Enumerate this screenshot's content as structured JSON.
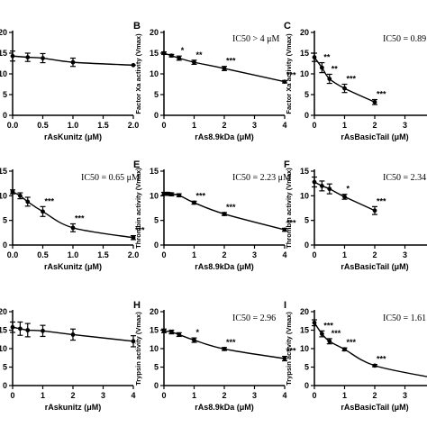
{
  "chart_data": [
    {
      "panel": "",
      "type": "line",
      "xlabel": "rAsKunitz (μM)",
      "ylabel": "",
      "ic50": "",
      "xlim": [
        0,
        2
      ],
      "ylim": [
        0,
        20
      ],
      "xticks": [
        "0.0",
        "0.5",
        "1.0",
        "1.5",
        "2.0"
      ],
      "yticks": [
        "0",
        "5",
        "10",
        "15",
        "20"
      ],
      "x": [
        0,
        0.25,
        0.5,
        1.0,
        2.0
      ],
      "values": [
        14.3,
        14.0,
        13.8,
        12.8,
        12.1
      ],
      "errors": [
        1.2,
        1.0,
        1.1,
        1.0,
        0
      ],
      "stars": [
        "",
        "",
        "",
        "",
        ""
      ]
    },
    {
      "panel": "B",
      "type": "line",
      "xlabel": "rAs8.9kDa (μM)",
      "ylabel": "Factor Xa activity (Vmax)",
      "ic50": "IC50 > 4 μM",
      "xlim": [
        0,
        4
      ],
      "ylim": [
        0,
        20
      ],
      "xticks": [
        "0",
        "1",
        "2",
        "3",
        "4"
      ],
      "yticks": [
        "0",
        "5",
        "10",
        "15",
        "20"
      ],
      "x": [
        0,
        0.25,
        0.5,
        1.0,
        2.0,
        4.0
      ],
      "values": [
        15.0,
        14.4,
        13.8,
        12.8,
        11.3,
        8.1
      ],
      "errors": [
        0.3,
        0.3,
        0.5,
        0.5,
        0.5,
        0.3
      ],
      "stars": [
        "",
        "",
        "*",
        "**",
        "***",
        "***"
      ]
    },
    {
      "panel": "C",
      "type": "line",
      "xlabel": "rAsBasicTail (μM)",
      "ylabel": "Factor Xa activity (Vmax)",
      "ic50": "IC50 = 0.89",
      "xlim": [
        0,
        4
      ],
      "ylim": [
        0,
        20
      ],
      "xticks": [
        "0",
        "1",
        "2",
        "3"
      ],
      "yticks": [
        "0",
        "5",
        "10",
        "15",
        "20"
      ],
      "x": [
        0,
        0.25,
        0.5,
        1.0,
        2.0
      ],
      "values": [
        14.0,
        11.5,
        8.8,
        6.5,
        3.2
      ],
      "errors": [
        1.0,
        1.2,
        1.1,
        1.0,
        0.6
      ],
      "stars": [
        "",
        "**",
        "**",
        "***",
        "***"
      ]
    },
    {
      "panel": "",
      "type": "line",
      "xlabel": "rAsKunitz (μM)",
      "ylabel": "",
      "ic50": "IC50 = 0.65 μM",
      "xlim": [
        0,
        2
      ],
      "ylim": [
        0,
        15
      ],
      "xticks": [
        "0.0",
        "0.5",
        "1.0",
        "1.5",
        "2.0"
      ],
      "yticks": [
        "0",
        "5",
        "10",
        "15"
      ],
      "x": [
        0,
        0.125,
        0.25,
        0.5,
        1.0,
        2.0
      ],
      "values": [
        10.8,
        10.0,
        8.8,
        6.8,
        3.5,
        1.5
      ],
      "errors": [
        0.4,
        0.6,
        0.9,
        1.0,
        0.8,
        0.4
      ],
      "stars": [
        "",
        "",
        "",
        "***",
        "***",
        "***"
      ]
    },
    {
      "panel": "E",
      "type": "line",
      "xlabel": "rAs8.9kDa (μM)",
      "ylabel": "Thrombin activity (Vmax)",
      "ic50": "IC50 = 2.23 μM",
      "xlim": [
        0,
        4
      ],
      "ylim": [
        0,
        15
      ],
      "xticks": [
        "0",
        "1",
        "2",
        "3",
        "4"
      ],
      "yticks": [
        "0",
        "5",
        "10",
        "15"
      ],
      "x": [
        0,
        0.125,
        0.25,
        0.5,
        1.0,
        2.0,
        4.0
      ],
      "values": [
        10.4,
        10.4,
        10.3,
        10.1,
        8.6,
        6.3,
        3.1
      ],
      "errors": [
        0.3,
        0.3,
        0.3,
        0.3,
        0.3,
        0.3,
        0.3
      ],
      "stars": [
        "",
        "",
        "",
        "",
        "***",
        "***",
        "***"
      ]
    },
    {
      "panel": "F",
      "type": "line",
      "xlabel": "rAsBasicTail (μM)",
      "ylabel": "Thrombin activity (Vmax)",
      "ic50": "IC50 = 2.34",
      "xlim": [
        0,
        4
      ],
      "ylim": [
        0,
        15
      ],
      "xticks": [
        "0",
        "1",
        "2",
        "3"
      ],
      "yticks": [
        "0",
        "5",
        "10",
        "15"
      ],
      "x": [
        0,
        0.25,
        0.5,
        1.0,
        2.0
      ],
      "values": [
        12.8,
        12.0,
        11.4,
        9.8,
        7.0
      ],
      "errors": [
        1.0,
        1.0,
        1.0,
        0.5,
        0.8
      ],
      "stars": [
        "",
        "",
        "",
        "*",
        "***"
      ]
    },
    {
      "panel": "",
      "type": "line",
      "xlabel": "rAskunitz (μM)",
      "ylabel": "",
      "ic50": "",
      "xlim": [
        0,
        4
      ],
      "ylim": [
        0,
        20
      ],
      "xticks": [
        "0",
        "1",
        "2",
        "3",
        "4"
      ],
      "yticks": [
        "0",
        "5",
        "10",
        "15",
        "20"
      ],
      "x": [
        0,
        0.25,
        0.5,
        1.0,
        2.0,
        4.0
      ],
      "values": [
        15.8,
        15.4,
        15.0,
        14.8,
        13.8,
        12.0
      ],
      "errors": [
        1.4,
        1.8,
        1.8,
        1.5,
        1.5,
        1.5
      ],
      "stars": [
        "",
        "",
        "",
        "",
        "",
        ""
      ]
    },
    {
      "panel": "H",
      "type": "line",
      "xlabel": "rAs8.9kDa (μM)",
      "ylabel": "Trypsin activity (Vmax)",
      "ic50": "IC50 = 2.96",
      "xlim": [
        0,
        4
      ],
      "ylim": [
        0,
        20
      ],
      "xticks": [
        "0",
        "1",
        "2",
        "3",
        "4"
      ],
      "yticks": [
        "0",
        "5",
        "10",
        "15",
        "20"
      ],
      "x": [
        0,
        0.25,
        0.5,
        1.0,
        2.0,
        4.0
      ],
      "values": [
        14.8,
        14.5,
        13.8,
        12.3,
        9.9,
        7.3
      ],
      "errors": [
        0.5,
        0.5,
        0.5,
        0.6,
        0.4,
        0.6
      ],
      "stars": [
        "",
        "",
        "",
        "*",
        "***",
        "***"
      ]
    },
    {
      "panel": "I",
      "type": "line",
      "xlabel": "rAsBasicTail (μM)",
      "ylabel": "Trypsin activity (Vmax)",
      "ic50": "IC50 = 1.61",
      "xlim": [
        0,
        4
      ],
      "ylim": [
        0,
        20
      ],
      "xticks": [
        "0",
        "1",
        "2",
        "3"
      ],
      "yticks": [
        "0",
        "5",
        "10",
        "15",
        "20"
      ],
      "x": [
        0,
        0.25,
        0.5,
        1.0,
        2.0,
        4.0
      ],
      "values": [
        17.0,
        14.0,
        12.0,
        9.8,
        5.4,
        2.0
      ],
      "errors": [
        0.8,
        0.8,
        0.7,
        0.4,
        0.3,
        0
      ],
      "stars": [
        "",
        "***",
        "***",
        "***",
        "***",
        ""
      ]
    }
  ]
}
